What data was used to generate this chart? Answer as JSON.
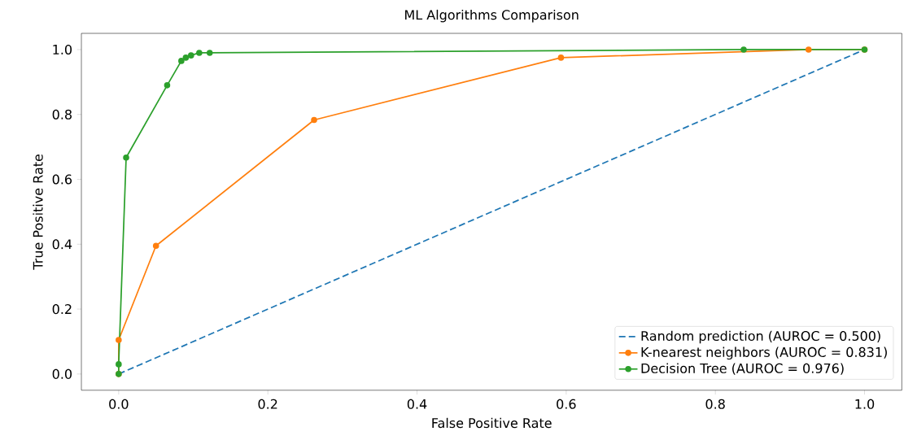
{
  "chart_data": {
    "type": "line",
    "title": "ML Algorithms Comparison",
    "xlabel": "False Positive Rate",
    "ylabel": "True Positive Rate",
    "xlim": [
      -0.05,
      1.05
    ],
    "ylim": [
      -0.05,
      1.05
    ],
    "xticks": [
      {
        "value": 0,
        "label": "0.0"
      },
      0.2,
      0.4,
      0.6,
      0.8,
      {
        "value": 1,
        "label": "1.0"
      }
    ],
    "yticks": [
      {
        "value": 0,
        "label": "0.0"
      },
      0.2,
      0.4,
      0.6,
      0.8,
      {
        "value": 1,
        "label": "1.0"
      }
    ],
    "legend": "bottom right",
    "grid": false,
    "series": [
      {
        "name": "Random prediction (AUROC = 0.500)",
        "color": "#1f77b4",
        "line_style": "dashed",
        "marker": "none",
        "x": [
          0,
          1
        ],
        "values": [
          0,
          1
        ]
      },
      {
        "name": "K-nearest neighbors (AUROC = 0.831)",
        "color": "#ff7f0e",
        "line_style": "solid",
        "marker": "circle",
        "x": [
          0,
          0,
          0.05,
          0.262,
          0.593,
          0.925,
          1
        ],
        "values": [
          0,
          0.105,
          0.395,
          0.783,
          0.975,
          1.0,
          1.0
        ]
      },
      {
        "name": "Decision Tree (AUROC = 0.976)",
        "color": "#2ca02c",
        "line_style": "solid",
        "marker": "circle",
        "x": [
          0,
          0,
          0.01,
          0.065,
          0.084,
          0.09,
          0.097,
          0.108,
          0.122,
          0.838,
          1
        ],
        "values": [
          0,
          0.03,
          0.667,
          0.89,
          0.965,
          0.975,
          0.982,
          0.99,
          0.99,
          1.0,
          1.0
        ]
      }
    ]
  }
}
